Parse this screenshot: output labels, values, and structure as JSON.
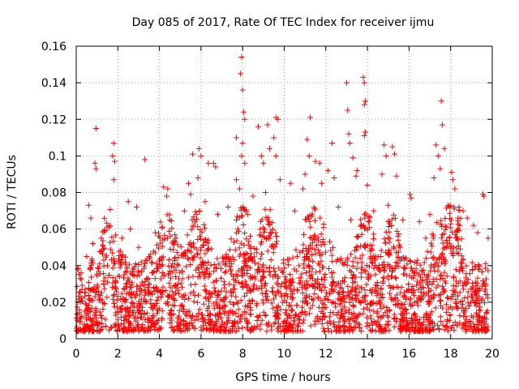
{
  "chart_data": {
    "type": "scatter",
    "title": "Day 085 of 2017, Rate Of TEC Index for receiver ijmu",
    "xlabel": "GPS time / hours",
    "ylabel": "ROTI / TECUs",
    "xlim": [
      0,
      20
    ],
    "ylim": [
      0,
      0.16
    ],
    "xticks": [
      0,
      2,
      4,
      6,
      8,
      10,
      12,
      14,
      16,
      18,
      20
    ],
    "xtick_labels": [
      "0",
      "2",
      "4",
      "6",
      "8",
      "10",
      "12",
      "14",
      "16",
      "18",
      "20"
    ],
    "yticks": [
      0,
      0.02,
      0.04,
      0.06,
      0.08,
      0.1,
      0.12,
      0.14,
      0.16
    ],
    "ytick_labels": [
      "0",
      "0.02",
      "0.04",
      "0.06",
      "0.08",
      "0.1",
      "0.12",
      "0.14",
      "0.16"
    ],
    "grid": true,
    "marker": "+",
    "series_color": "#ff0000",
    "series": [
      {
        "name": "ROTI",
        "points": [
          [
            0.95,
            0.115
          ],
          [
            1.8,
            0.107
          ],
          [
            1.75,
            0.1
          ],
          [
            1.85,
            0.097
          ],
          [
            0.9,
            0.096
          ],
          [
            0.95,
            0.093
          ],
          [
            3.3,
            0.098
          ],
          [
            2.5,
            0.075
          ],
          [
            2.9,
            0.072
          ],
          [
            0.6,
            0.073
          ],
          [
            0.7,
            0.066
          ],
          [
            1.8,
            0.087
          ],
          [
            4.2,
            0.083
          ],
          [
            4.4,
            0.082
          ],
          [
            4.35,
            0.078
          ],
          [
            5.4,
            0.085
          ],
          [
            5.5,
            0.079
          ],
          [
            5.6,
            0.101
          ],
          [
            5.9,
            0.104
          ],
          [
            6.0,
            0.1
          ],
          [
            6.6,
            0.096
          ],
          [
            6.7,
            0.094
          ],
          [
            6.35,
            0.096
          ],
          [
            5.85,
            0.088
          ],
          [
            7.7,
            0.11
          ],
          [
            7.95,
            0.154
          ],
          [
            7.9,
            0.145
          ],
          [
            8.0,
            0.136
          ],
          [
            8.05,
            0.124
          ],
          [
            8.1,
            0.12
          ],
          [
            8.0,
            0.107
          ],
          [
            7.95,
            0.1
          ],
          [
            8.1,
            0.096
          ],
          [
            7.7,
            0.087
          ],
          [
            7.85,
            0.082
          ],
          [
            8.75,
            0.116
          ],
          [
            8.9,
            0.1
          ],
          [
            9.2,
            0.117
          ],
          [
            9.3,
            0.104
          ],
          [
            9.0,
            0.096
          ],
          [
            9.6,
            0.121
          ],
          [
            9.7,
            0.12
          ],
          [
            9.5,
            0.11
          ],
          [
            9.6,
            0.1
          ],
          [
            9.8,
            0.087
          ],
          [
            10.3,
            0.085
          ],
          [
            11.1,
            0.109
          ],
          [
            11.25,
            0.121
          ],
          [
            11.2,
            0.1
          ],
          [
            11.5,
            0.097
          ],
          [
            11.7,
            0.096
          ],
          [
            12.3,
            0.107
          ],
          [
            12.1,
            0.092
          ],
          [
            11.0,
            0.09
          ],
          [
            12.4,
            0.088
          ],
          [
            13.0,
            0.14
          ],
          [
            13.05,
            0.125
          ],
          [
            13.1,
            0.112
          ],
          [
            13.15,
            0.107
          ],
          [
            13.3,
            0.099
          ],
          [
            13.8,
            0.143
          ],
          [
            13.85,
            0.14
          ],
          [
            13.9,
            0.13
          ],
          [
            13.85,
            0.128
          ],
          [
            13.9,
            0.113
          ],
          [
            13.85,
            0.111
          ],
          [
            13.5,
            0.092
          ],
          [
            13.45,
            0.089
          ],
          [
            14.0,
            0.084
          ],
          [
            14.8,
            0.106
          ],
          [
            14.9,
            0.1
          ],
          [
            15.2,
            0.105
          ],
          [
            15.3,
            0.101
          ],
          [
            14.7,
            0.09
          ],
          [
            15.4,
            0.089
          ],
          [
            16.05,
            0.079
          ],
          [
            16.1,
            0.077
          ],
          [
            16.5,
            0.064
          ],
          [
            17.3,
            0.106
          ],
          [
            17.4,
            0.1
          ],
          [
            17.55,
            0.13
          ],
          [
            17.6,
            0.117
          ],
          [
            17.7,
            0.104
          ],
          [
            17.5,
            0.093
          ],
          [
            18.05,
            0.091
          ],
          [
            18.1,
            0.087
          ],
          [
            18.2,
            0.082
          ],
          [
            17.2,
            0.088
          ],
          [
            19.55,
            0.079
          ],
          [
            19.6,
            0.078
          ],
          [
            18.6,
            0.07
          ],
          [
            18.8,
            0.066
          ],
          [
            19.1,
            0.062
          ],
          [
            0.2,
            0.033
          ],
          [
            0.5,
            0.045
          ],
          [
            0.8,
            0.052
          ],
          [
            1.2,
            0.055
          ],
          [
            1.5,
            0.04
          ],
          [
            2.2,
            0.055
          ],
          [
            2.6,
            0.06
          ],
          [
            3.0,
            0.05
          ],
          [
            3.5,
            0.045
          ],
          [
            3.8,
            0.058
          ],
          [
            4.5,
            0.065
          ],
          [
            4.8,
            0.055
          ],
          [
            5.2,
            0.07
          ],
          [
            6.2,
            0.075
          ],
          [
            6.8,
            0.068
          ],
          [
            7.3,
            0.072
          ],
          [
            8.5,
            0.078
          ],
          [
            9.1,
            0.08
          ],
          [
            10.5,
            0.07
          ],
          [
            10.9,
            0.082
          ],
          [
            11.8,
            0.085
          ],
          [
            12.6,
            0.072
          ],
          [
            13.2,
            0.065
          ],
          [
            14.3,
            0.07
          ],
          [
            15.0,
            0.073
          ],
          [
            15.7,
            0.065
          ],
          [
            16.8,
            0.055
          ],
          [
            17.0,
            0.068
          ],
          [
            18.4,
            0.072
          ],
          [
            19.3,
            0.058
          ],
          [
            19.8,
            0.055
          ]
        ]
      }
    ],
    "dense_band": {
      "description_values": "bulk of samples between 0.005 and 0.06 across 0-19.8 h",
      "x_range": [
        0,
        19.8
      ],
      "y_floor": 0.004,
      "y_typical_max": 0.06
    }
  }
}
